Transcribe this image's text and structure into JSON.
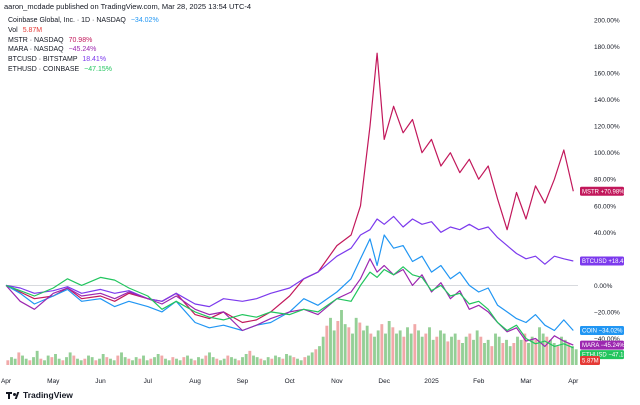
{
  "header": {
    "published_by": "aaron_mcdade published on TradingView.com, Mar 28, 2025 13:54 UTC-4"
  },
  "legend": {
    "main_symbol": "Coinbase Global, Inc. · 1D · NASDAQ",
    "main_change": "−34.02%",
    "vol_label": "Vol",
    "vol_value": "5.87M",
    "items": [
      {
        "symbol": "MSTR · NASDAQ",
        "change": "70.98%",
        "color": "#c2185b"
      },
      {
        "symbol": "MARA · NASDAQ",
        "change": "−45.24%",
        "color": "#9c27b0"
      },
      {
        "symbol": "BTCUSD · BITSTAMP",
        "change": "18.41%",
        "color": "#7c3aed"
      },
      {
        "symbol": "ETHUSD · COINBASE",
        "change": "−47.15%",
        "color": "#22c55e"
      }
    ]
  },
  "footer": {
    "brand": "TradingView"
  },
  "chart_data": {
    "type": "line",
    "x_ticks": [
      "Apr",
      "May",
      "Jun",
      "Jul",
      "Aug",
      "Sep",
      "Oct",
      "Nov",
      "Dec",
      "2025",
      "Feb",
      "Mar",
      "Apr"
    ],
    "y_ticks": [
      "200.00%",
      "180.00%",
      "160.00%",
      "140.00%",
      "120.00%",
      "100.00%",
      "80.00%",
      "60.00%",
      "40.00%",
      "20.00%",
      "0.00%",
      "−20.00%",
      "−40.00%"
    ],
    "ylim": [
      -60,
      200
    ],
    "xlim": [
      0,
      12.1
    ],
    "series": [
      {
        "name": "MSTR",
        "label": "MSTR",
        "color": "#c2185b",
        "tag": "+70.98%",
        "points": [
          [
            0,
            0
          ],
          [
            0.3,
            -5
          ],
          [
            0.6,
            -10
          ],
          [
            1,
            -8
          ],
          [
            1.3,
            -2
          ],
          [
            1.6,
            -10
          ],
          [
            2,
            -8
          ],
          [
            2.3,
            -12
          ],
          [
            2.6,
            -6
          ],
          [
            3,
            -10
          ],
          [
            3.3,
            -12
          ],
          [
            3.6,
            -6
          ],
          [
            4,
            -22
          ],
          [
            4.3,
            -25
          ],
          [
            4.6,
            -20
          ],
          [
            5,
            -28
          ],
          [
            5.3,
            -26
          ],
          [
            5.6,
            -20
          ],
          [
            6,
            -8
          ],
          [
            6.3,
            5
          ],
          [
            6.6,
            10
          ],
          [
            7,
            30
          ],
          [
            7.3,
            38
          ],
          [
            7.5,
            60
          ],
          [
            7.7,
            120
          ],
          [
            7.85,
            175
          ],
          [
            8,
            110
          ],
          [
            8.2,
            135
          ],
          [
            8.4,
            115
          ],
          [
            8.6,
            125
          ],
          [
            8.8,
            100
          ],
          [
            9,
            110
          ],
          [
            9.2,
            90
          ],
          [
            9.4,
            100
          ],
          [
            9.6,
            85
          ],
          [
            9.8,
            95
          ],
          [
            10,
            80
          ],
          [
            10.2,
            90
          ],
          [
            10.4,
            65
          ],
          [
            10.6,
            42
          ],
          [
            10.8,
            70
          ],
          [
            11,
            50
          ],
          [
            11.2,
            75
          ],
          [
            11.4,
            62
          ],
          [
            11.6,
            80
          ],
          [
            11.8,
            102
          ],
          [
            12,
            71
          ]
        ]
      },
      {
        "name": "BTCUSD",
        "label": "BTCUSD",
        "color": "#7c3aed",
        "tag": "+18.41%",
        "points": [
          [
            0,
            0
          ],
          [
            0.3,
            -2
          ],
          [
            0.6,
            -6
          ],
          [
            1,
            -4
          ],
          [
            1.3,
            -1
          ],
          [
            1.6,
            -6
          ],
          [
            2,
            -3
          ],
          [
            2.3,
            -6
          ],
          [
            2.6,
            -4
          ],
          [
            3,
            -10
          ],
          [
            3.3,
            -12
          ],
          [
            3.6,
            -6
          ],
          [
            4,
            -14
          ],
          [
            4.3,
            -16
          ],
          [
            4.6,
            -10
          ],
          [
            5,
            -12
          ],
          [
            5.3,
            -10
          ],
          [
            5.6,
            -6
          ],
          [
            6,
            -2
          ],
          [
            6.3,
            5
          ],
          [
            6.6,
            10
          ],
          [
            7,
            22
          ],
          [
            7.3,
            28
          ],
          [
            7.5,
            38
          ],
          [
            7.7,
            42
          ],
          [
            7.85,
            50
          ],
          [
            8,
            46
          ],
          [
            8.2,
            52
          ],
          [
            8.4,
            44
          ],
          [
            8.6,
            50
          ],
          [
            8.8,
            46
          ],
          [
            9,
            48
          ],
          [
            9.2,
            40
          ],
          [
            9.4,
            44
          ],
          [
            9.6,
            42
          ],
          [
            9.8,
            46
          ],
          [
            10,
            42
          ],
          [
            10.2,
            44
          ],
          [
            10.4,
            36
          ],
          [
            10.6,
            30
          ],
          [
            10.8,
            24
          ],
          [
            11,
            20
          ],
          [
            11.2,
            22
          ],
          [
            11.4,
            16
          ],
          [
            11.6,
            22
          ],
          [
            11.8,
            20
          ],
          [
            12,
            18.4
          ]
        ]
      },
      {
        "name": "COIN",
        "label": "COIN",
        "color": "#2196f3",
        "tag": "−34.02%",
        "points": [
          [
            0,
            0
          ],
          [
            0.3,
            -6
          ],
          [
            0.6,
            -14
          ],
          [
            1,
            -8
          ],
          [
            1.3,
            -3
          ],
          [
            1.6,
            -12
          ],
          [
            2,
            -10
          ],
          [
            2.3,
            -16
          ],
          [
            2.6,
            -12
          ],
          [
            3,
            -16
          ],
          [
            3.3,
            -20
          ],
          [
            3.6,
            -12
          ],
          [
            4,
            -28
          ],
          [
            4.3,
            -32
          ],
          [
            4.6,
            -30
          ],
          [
            5,
            -34
          ],
          [
            5.3,
            -30
          ],
          [
            5.6,
            -28
          ],
          [
            6,
            -20
          ],
          [
            6.3,
            -10
          ],
          [
            6.6,
            -15
          ],
          [
            7,
            -5
          ],
          [
            7.3,
            5
          ],
          [
            7.5,
            20
          ],
          [
            7.7,
            35
          ],
          [
            7.85,
            15
          ],
          [
            8,
            38
          ],
          [
            8.2,
            28
          ],
          [
            8.4,
            30
          ],
          [
            8.6,
            18
          ],
          [
            8.8,
            22
          ],
          [
            9,
            10
          ],
          [
            9.2,
            15
          ],
          [
            9.4,
            5
          ],
          [
            9.6,
            10
          ],
          [
            9.8,
            0
          ],
          [
            10,
            -5
          ],
          [
            10.2,
            -2
          ],
          [
            10.4,
            -15
          ],
          [
            10.6,
            -20
          ],
          [
            10.8,
            -25
          ],
          [
            11,
            -28
          ],
          [
            11.2,
            -22
          ],
          [
            11.4,
            -30
          ],
          [
            11.6,
            -34
          ],
          [
            11.8,
            -26
          ],
          [
            12,
            -34
          ]
        ]
      },
      {
        "name": "MARA",
        "label": "MARA",
        "color": "#9c27b0",
        "tag": "−45.24%",
        "points": [
          [
            0,
            0
          ],
          [
            0.3,
            -12
          ],
          [
            0.6,
            -18
          ],
          [
            1,
            -6
          ],
          [
            1.3,
            -2
          ],
          [
            1.6,
            -8
          ],
          [
            2,
            -6
          ],
          [
            2.3,
            -10
          ],
          [
            2.6,
            -5
          ],
          [
            3,
            -10
          ],
          [
            3.3,
            -14
          ],
          [
            3.6,
            -8
          ],
          [
            4,
            -18
          ],
          [
            4.3,
            -22
          ],
          [
            4.6,
            -20
          ],
          [
            5,
            -34
          ],
          [
            5.3,
            -30
          ],
          [
            5.6,
            -25
          ],
          [
            6,
            -20
          ],
          [
            6.3,
            -18
          ],
          [
            6.6,
            -22
          ],
          [
            7,
            -10
          ],
          [
            7.3,
            -5
          ],
          [
            7.5,
            5
          ],
          [
            7.7,
            20
          ],
          [
            7.85,
            10
          ],
          [
            8,
            15
          ],
          [
            8.2,
            8
          ],
          [
            8.4,
            12
          ],
          [
            8.6,
            0
          ],
          [
            8.8,
            8
          ],
          [
            9,
            -5
          ],
          [
            9.2,
            2
          ],
          [
            9.4,
            -10
          ],
          [
            9.6,
            -4
          ],
          [
            9.8,
            -18
          ],
          [
            10,
            -15
          ],
          [
            10.2,
            -20
          ],
          [
            10.4,
            -28
          ],
          [
            10.6,
            -35
          ],
          [
            10.8,
            -32
          ],
          [
            11,
            -42
          ],
          [
            11.2,
            -40
          ],
          [
            11.4,
            -46
          ],
          [
            11.6,
            -38
          ],
          [
            11.8,
            -42
          ],
          [
            12,
            -45
          ]
        ]
      },
      {
        "name": "ETHUSD",
        "label": "ETHUSD",
        "color": "#22c55e",
        "tag": "−47.15%",
        "points": [
          [
            0,
            0
          ],
          [
            0.3,
            -4
          ],
          [
            0.6,
            -8
          ],
          [
            1,
            -2
          ],
          [
            1.3,
            5
          ],
          [
            1.6,
            0
          ],
          [
            2,
            6
          ],
          [
            2.3,
            4
          ],
          [
            2.6,
            -2
          ],
          [
            3,
            -8
          ],
          [
            3.3,
            -18
          ],
          [
            3.6,
            -12
          ],
          [
            4,
            -20
          ],
          [
            4.3,
            -24
          ],
          [
            4.6,
            -26
          ],
          [
            5,
            -22
          ],
          [
            5.3,
            -24
          ],
          [
            5.6,
            -20
          ],
          [
            6,
            -22
          ],
          [
            6.3,
            -18
          ],
          [
            6.6,
            -20
          ],
          [
            7,
            -10
          ],
          [
            7.3,
            -12
          ],
          [
            7.5,
            0
          ],
          [
            7.7,
            10
          ],
          [
            7.85,
            6
          ],
          [
            8,
            12
          ],
          [
            8.2,
            8
          ],
          [
            8.4,
            14
          ],
          [
            8.6,
            8
          ],
          [
            8.8,
            6
          ],
          [
            9,
            -4
          ],
          [
            9.2,
            0
          ],
          [
            9.4,
            -8
          ],
          [
            9.6,
            -6
          ],
          [
            9.8,
            -14
          ],
          [
            10,
            -12
          ],
          [
            10.2,
            -18
          ],
          [
            10.4,
            -28
          ],
          [
            10.6,
            -34
          ],
          [
            10.8,
            -30
          ],
          [
            11,
            -40
          ],
          [
            11.2,
            -44
          ],
          [
            11.4,
            -42
          ],
          [
            11.6,
            -46
          ],
          [
            11.8,
            -44
          ],
          [
            12,
            -47
          ]
        ]
      }
    ],
    "volume": {
      "label": "Vol",
      "value": "5.87M",
      "color_up": "#81c784",
      "color_down": "#ef9a9a",
      "bars": [
        3,
        5,
        4,
        8,
        6,
        4,
        3,
        5,
        9,
        4,
        3,
        6,
        5,
        7,
        4,
        3,
        5,
        8,
        6,
        4,
        3,
        4,
        6,
        5,
        3,
        4,
        7,
        5,
        4,
        3,
        6,
        8,
        5,
        4,
        3,
        5,
        4,
        6,
        3,
        4,
        5,
        7,
        6,
        4,
        3,
        5,
        4,
        3,
        5,
        6,
        4,
        3,
        5,
        4,
        6,
        8,
        5,
        4,
        3,
        4,
        6,
        5,
        4,
        3,
        5,
        7,
        9,
        6,
        5,
        4,
        3,
        5,
        4,
        6,
        5,
        4,
        7,
        6,
        5,
        4,
        3,
        5,
        6,
        8,
        10,
        12,
        18,
        25,
        30,
        22,
        28,
        35,
        26,
        24,
        20,
        30,
        27,
        22,
        25,
        20,
        18,
        22,
        26,
        20,
        28,
        24,
        20,
        22,
        18,
        24,
        20,
        26,
        22,
        18,
        20,
        24,
        16,
        18,
        22,
        20,
        15,
        18,
        20,
        16,
        14,
        18,
        20,
        16,
        22,
        18,
        14,
        16,
        12,
        20,
        18,
        14,
        16,
        12,
        14,
        18,
        16,
        20,
        14,
        18,
        16,
        24,
        20,
        18,
        16,
        14,
        12,
        18,
        16,
        14,
        12,
        10
      ]
    },
    "grid": false,
    "zero_line": true
  }
}
